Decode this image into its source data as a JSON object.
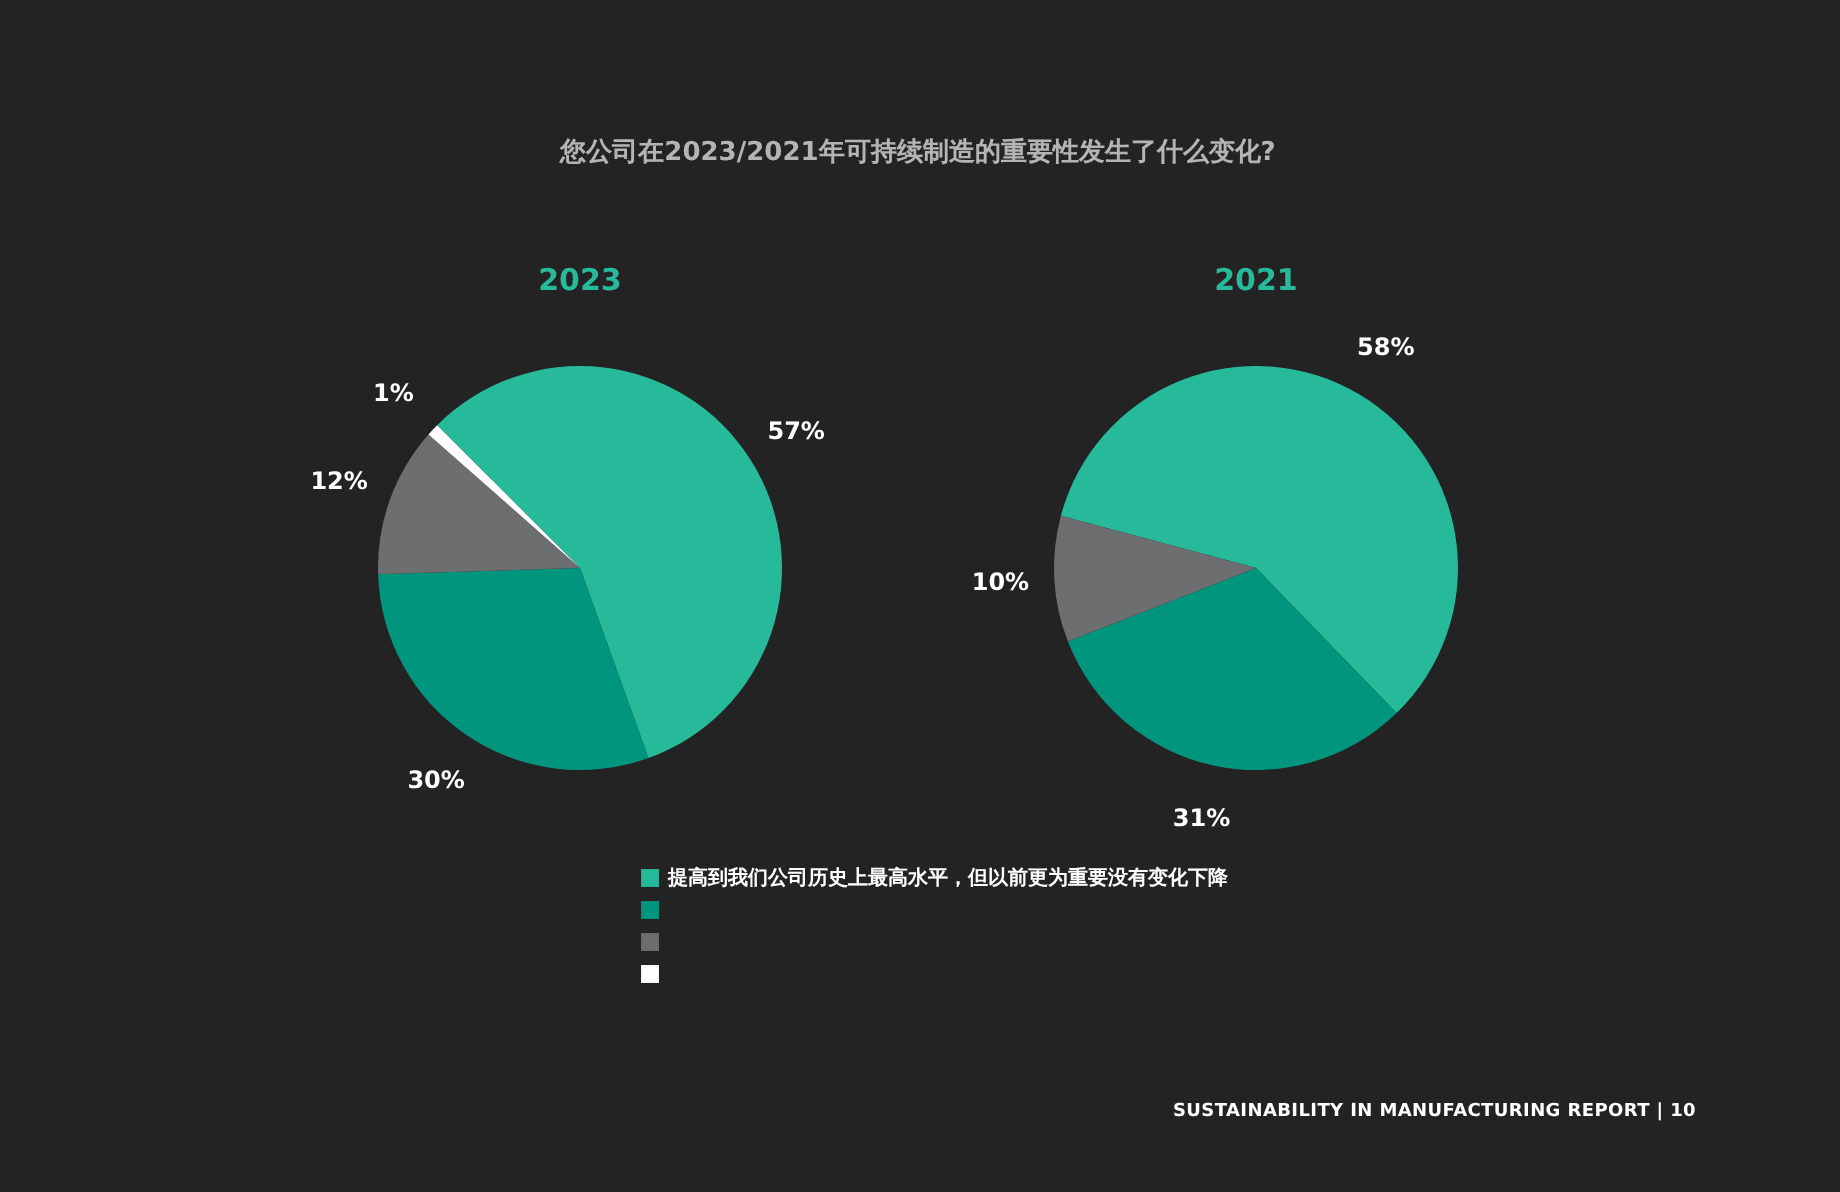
{
  "chart_data": [
    {
      "type": "pie",
      "title": "您公司在2023/2021年可持续制造的重要性发生了什么变化?",
      "subtitle": "2023",
      "categories": [
        "提高到我们公司历史上最高水平，但以前更为重要没有变化下降",
        null,
        null,
        null
      ],
      "values": [
        57,
        30,
        12,
        1
      ],
      "colors": [
        "#26b99a",
        "#00957d",
        "#6d6e70",
        "#ffffff"
      ],
      "value_labels": [
        "57%",
        "30%",
        "12%",
        "1%"
      ],
      "legend": "bottom",
      "annotations": [
        "SUSTAINABILITY IN MANUFACTURING REPORT | 10"
      ]
    },
    {
      "type": "pie",
      "subtitle": "2021",
      "categories": [
        null,
        null,
        null
      ],
      "values": [
        58,
        31,
        10
      ],
      "colors": [
        "#26b99a",
        "#00957d",
        "#6d6e70"
      ],
      "value_labels": [
        "58%",
        "31%",
        "10%"
      ]
    }
  ]
}
